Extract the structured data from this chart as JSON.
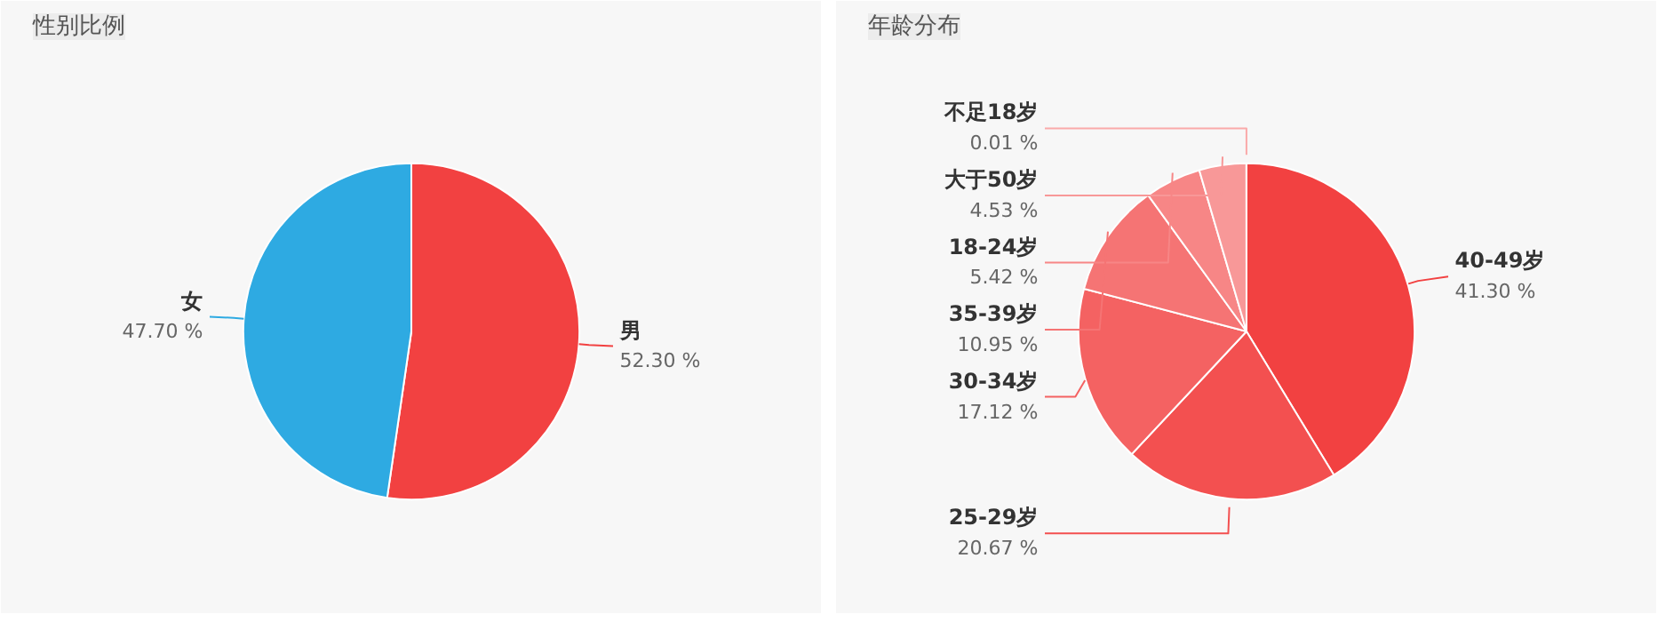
{
  "chart_data": [
    {
      "type": "pie",
      "title": "性别比例",
      "categories": [
        "男",
        "女"
      ],
      "values": [
        52.3,
        47.7
      ],
      "value_labels": [
        "52.30 %",
        "47.70 %"
      ],
      "colors": [
        "#f24141",
        "#2eaae2"
      ]
    },
    {
      "type": "pie",
      "title": "年龄分布",
      "categories": [
        "40-49岁",
        "25-29岁",
        "30-34岁",
        "35-39岁",
        "18-24岁",
        "大于50岁",
        "不足18岁"
      ],
      "values": [
        41.3,
        20.67,
        17.12,
        10.95,
        5.42,
        4.53,
        0.01
      ],
      "value_labels": [
        "41.30 %",
        "20.67 %",
        "17.12 %",
        "10.95 %",
        "5.42 %",
        "4.53 %",
        "0.01 %"
      ],
      "colors": [
        "#f24141",
        "#f35050",
        "#f46262",
        "#f57474",
        "#f78686",
        "#f89898",
        "#faaaaa"
      ]
    }
  ]
}
